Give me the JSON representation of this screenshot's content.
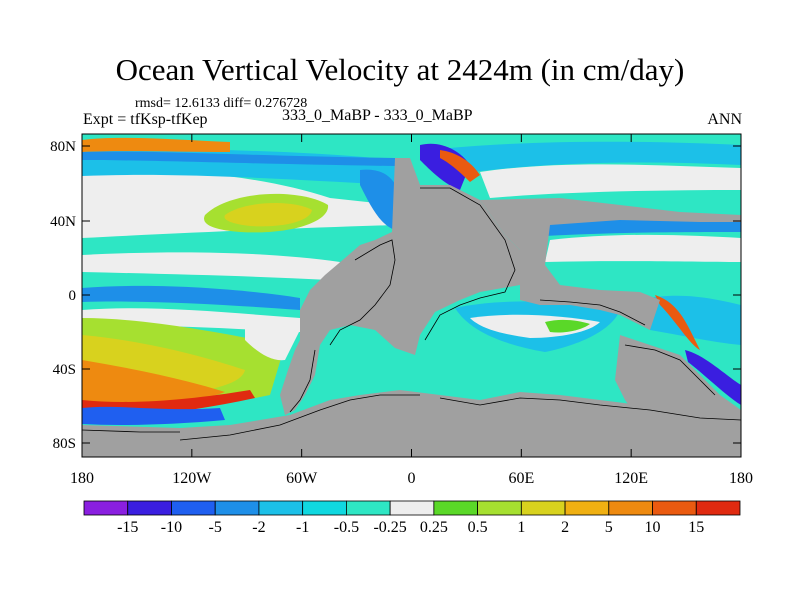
{
  "chart_data": {
    "type": "heatmap",
    "title": "Ocean Vertical Velocity at 2424m (in cm/day)",
    "subtitle": "rmsd= 12.6133 diff= 0.276728",
    "left_label": "Expt = tfKsp-tfKep",
    "center_label": "333_0_MaBP - 333_0_MaBP",
    "right_label": "ANN",
    "x_ticks": [
      "180",
      "120W",
      "60W",
      "0",
      "60E",
      "120E",
      "180"
    ],
    "y_ticks": [
      "80N",
      "40N",
      "0",
      "40S",
      "80S"
    ],
    "xlim": [
      -180,
      180
    ],
    "ylim": [
      -90,
      90
    ],
    "colorbar": {
      "labels": [
        "-15",
        "-10",
        "-5",
        "-2",
        "-1",
        "-0.5",
        "-0.25",
        "0.25",
        "0.5",
        "1",
        "2",
        "5",
        "10",
        "15"
      ],
      "colors": [
        "#8a1fe0",
        "#3a1ee0",
        "#1f5ff0",
        "#1e8fe8",
        "#1cc0e8",
        "#10d8e0",
        "#2ee6c4",
        "#eeeeee",
        "#5ad828",
        "#a6e030",
        "#d8d21e",
        "#f0b012",
        "#ee8a10",
        "#ea5a10",
        "#e02a10"
      ]
    },
    "land_color": "#a0a0a0"
  }
}
